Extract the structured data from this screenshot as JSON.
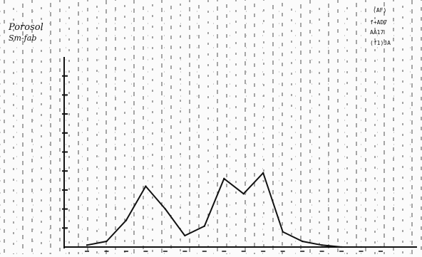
{
  "chart_data": {
    "type": "line",
    "title_lines": [
      "Porosol",
      "Sm-fab"
    ],
    "corner_label_lines": [
      "(AF)",
      "f+AD7",
      "AA17",
      "(f1)JA"
    ],
    "x": [
      1,
      2,
      3,
      4,
      5,
      6,
      7,
      8,
      9,
      10,
      11,
      12,
      13,
      14,
      15,
      16
    ],
    "values": [
      1,
      3,
      14,
      32,
      20,
      6,
      11,
      36,
      28,
      39,
      8,
      3,
      1,
      0,
      0,
      0
    ],
    "ylim": [
      0,
      100
    ],
    "grid": true,
    "colors": {
      "line": "#111111",
      "axis": "#111111",
      "grid": "#2a2a2a"
    }
  }
}
